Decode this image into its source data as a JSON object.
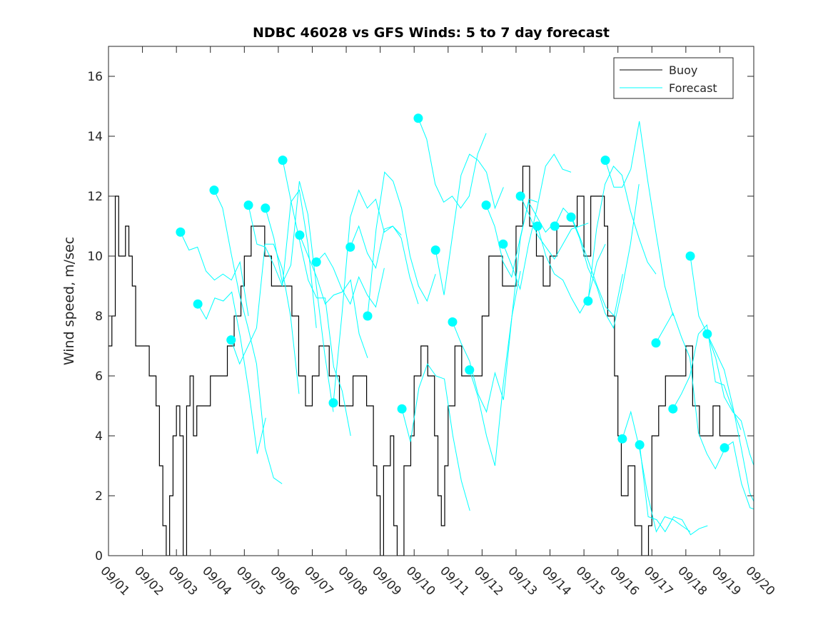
{
  "chart_data": {
    "type": "line",
    "title": "NDBC 46028 vs GFS Winds: 5 to 7 day forecast",
    "xlabel": "",
    "ylabel": "Wind speed, m/sec",
    "xlim": [
      0,
      19
    ],
    "ylim": [
      0,
      17
    ],
    "x_unit": "days since 09/01",
    "x_tick_labels": [
      "09/01",
      "09/02",
      "09/03",
      "09/04",
      "09/05",
      "09/06",
      "09/07",
      "09/08",
      "09/09",
      "09/10",
      "09/11",
      "09/12",
      "09/13",
      "09/14",
      "09/15",
      "09/16",
      "09/17",
      "09/18",
      "09/19",
      "09/20"
    ],
    "y_ticks": [
      0,
      2,
      4,
      6,
      8,
      10,
      12,
      14,
      16
    ],
    "grid": false,
    "legend": {
      "placement": "top-right",
      "entries": [
        "Buoy",
        "Forecast"
      ]
    },
    "colors": {
      "buoy": "#000000",
      "forecast": "#00ffff"
    },
    "buoy": {
      "x": [
        0,
        0.1,
        0.2,
        0.3,
        0.5,
        0.6,
        0.7,
        0.8,
        1.0,
        1.2,
        1.3,
        1.4,
        1.5,
        1.6,
        1.7,
        1.8,
        1.9,
        2.0,
        2.1,
        2.2,
        2.3,
        2.4,
        2.5,
        2.6,
        2.8,
        3.0,
        3.3,
        3.5,
        3.7,
        3.9,
        4.0,
        4.2,
        4.4,
        4.6,
        4.8,
        5.0,
        5.2,
        5.4,
        5.6,
        5.8,
        6.0,
        6.2,
        6.5,
        6.7,
        6.8,
        7.0,
        7.2,
        7.4,
        7.6,
        7.8,
        7.9,
        8.0,
        8.1,
        8.3,
        8.4,
        8.5,
        8.7,
        8.9,
        9.0,
        9.2,
        9.4,
        9.6,
        9.7,
        9.8,
        9.9,
        10.0,
        10.2,
        10.4,
        10.6,
        10.8,
        11.0,
        11.2,
        11.4,
        11.6,
        11.8,
        12.0,
        12.2,
        12.4,
        12.6,
        12.8,
        13.0,
        13.2,
        13.4,
        13.6,
        13.8,
        14.0,
        14.2,
        14.4,
        14.6,
        14.7,
        14.9,
        15.0,
        15.1,
        15.3,
        15.5,
        15.7,
        15.9,
        16.0,
        16.2,
        16.4,
        16.6,
        16.8,
        17.0,
        17.2,
        17.4,
        17.6,
        17.8,
        18.0,
        18.2,
        18.4
      ],
      "y": [
        7,
        8,
        12,
        10,
        11,
        10,
        9,
        7,
        7,
        6,
        6,
        5,
        3,
        1,
        0,
        2,
        4,
        5,
        4,
        0,
        5,
        6,
        4,
        5,
        5,
        6,
        6,
        7,
        8,
        9,
        10,
        11,
        11,
        10,
        9,
        9,
        9,
        8,
        6,
        5,
        6,
        7,
        6,
        6,
        5,
        5,
        6,
        6,
        5,
        3,
        2,
        0,
        3,
        4,
        1,
        0,
        3,
        4,
        6,
        7,
        6,
        4,
        2,
        1,
        3,
        5,
        7,
        6,
        6,
        6,
        8,
        10,
        10,
        9,
        9,
        11,
        13,
        11,
        10,
        9,
        10,
        11,
        11,
        11,
        12,
        10,
        12,
        12,
        11,
        8,
        6,
        4,
        2,
        3,
        1,
        0,
        1,
        4,
        5,
        6,
        6,
        6,
        7,
        5,
        4,
        4,
        5,
        4,
        4,
        4
      ]
    },
    "forecast_step_days": 0.25,
    "forecasts": [
      {
        "start": 2.12,
        "y": [
          10.8,
          10.2,
          10.3,
          9.5,
          9.2,
          9.4,
          9.2,
          9.8,
          8.0
        ]
      },
      {
        "start": 2.63,
        "y": [
          8.4,
          7.9,
          8.6,
          8.5,
          8.8,
          7.3,
          5.5,
          3.4,
          4.6
        ]
      },
      {
        "start": 3.11,
        "y": [
          12.2,
          11.6,
          10.1,
          8.7,
          7.6,
          6.4,
          3.6,
          2.6,
          2.4
        ]
      },
      {
        "start": 3.61,
        "y": [
          7.2,
          6.4,
          7.0,
          7.6,
          10.4,
          10.4,
          9.6,
          8.0,
          5.4
        ]
      },
      {
        "start": 4.12,
        "y": [
          11.7,
          10.4,
          10.3,
          9.7,
          9.0,
          11.8,
          12.2,
          10.4,
          7.6
        ]
      },
      {
        "start": 4.62,
        "y": [
          11.6,
          10.6,
          9.1,
          9.7,
          12.5,
          11.4,
          9.0,
          6.7,
          4.8
        ]
      },
      {
        "start": 5.13,
        "y": [
          13.2,
          11.8,
          10.5,
          9.2,
          8.6,
          8.6,
          6.3,
          5.5,
          4.0
        ]
      },
      {
        "start": 5.63,
        "y": [
          10.7,
          10.0,
          9.3,
          8.4,
          8.7,
          8.8,
          9.2,
          7.4,
          6.6
        ]
      },
      {
        "start": 6.12,
        "y": [
          9.8,
          10.1,
          9.6,
          8.9,
          8.4,
          9.3,
          8.7,
          8.3,
          9.6
        ]
      },
      {
        "start": 6.62,
        "y": [
          5.1,
          8.0,
          11.3,
          12.2,
          11.6,
          11.9,
          10.8,
          11.0,
          10.7
        ]
      },
      {
        "start": 7.12,
        "y": [
          10.3,
          11.0,
          10.1,
          9.6,
          10.9,
          11.0,
          10.6,
          9.3,
          8.4
        ]
      },
      {
        "start": 7.63,
        "y": [
          8.0,
          10.9,
          12.8,
          12.5,
          11.6,
          10.0,
          9.0,
          8.5,
          9.4
        ]
      },
      {
        "start": 8.64,
        "y": [
          4.9,
          3.8,
          5.6,
          6.4,
          6.0,
          5.9,
          4.0,
          2.5,
          1.5
        ]
      },
      {
        "start": 9.12,
        "y": [
          14.6,
          13.9,
          12.4,
          11.8,
          12.0,
          11.6,
          12.0,
          13.4,
          14.1
        ]
      },
      {
        "start": 9.63,
        "y": [
          10.2,
          8.7,
          10.7,
          12.7,
          13.4,
          13.2,
          12.8,
          11.6,
          12.3
        ]
      },
      {
        "start": 10.13,
        "y": [
          7.8,
          7.1,
          6.5,
          5.4,
          4.8,
          6.1,
          5.2,
          8.0,
          9.5
        ]
      },
      {
        "start": 10.63,
        "y": [
          6.2,
          5.3,
          4.0,
          3.0,
          5.8,
          8.0,
          10.6,
          11.9,
          11.8
        ]
      },
      {
        "start": 11.12,
        "y": [
          11.7,
          11.0,
          9.8,
          9.3,
          10.6,
          11.8,
          11.3,
          10.8,
          11.1
        ]
      },
      {
        "start": 11.62,
        "y": [
          10.4,
          9.7,
          8.9,
          10.4,
          11.6,
          13.0,
          13.4,
          12.9,
          12.8
        ]
      },
      {
        "start": 12.13,
        "y": [
          12.0,
          11.4,
          10.7,
          10.3,
          9.9,
          10.4,
          10.9,
          11.0,
          11.1
        ]
      },
      {
        "start": 12.63,
        "y": [
          11.0,
          10.0,
          9.4,
          9.2,
          8.6,
          8.1,
          8.6,
          9.8,
          10.4
        ]
      },
      {
        "start": 13.14,
        "y": [
          11.0,
          11.6,
          11.3,
          10.6,
          9.8,
          9.0,
          8.3,
          8.0,
          9.4
        ]
      },
      {
        "start": 13.62,
        "y": [
          11.3,
          10.6,
          9.6,
          9.0,
          8.1,
          7.6,
          8.9,
          10.4,
          12.4
        ]
      },
      {
        "start": 14.12,
        "y": [
          8.5,
          10.9,
          12.4,
          13.0,
          12.7,
          11.5,
          10.6,
          9.8,
          9.4
        ]
      },
      {
        "start": 14.63,
        "y": [
          13.2,
          12.3,
          12.3,
          12.9,
          14.5,
          12.5,
          10.7,
          9.0,
          8.0
        ]
      },
      {
        "start": 15.13,
        "y": [
          3.9,
          4.8,
          3.6,
          2.0,
          0.8,
          1.3,
          1.2,
          1.0,
          0.8
        ]
      },
      {
        "start": 15.64,
        "y": [
          3.7,
          1.3,
          1.2,
          0.8,
          1.3,
          1.2,
          0.7,
          0.9,
          1.0
        ]
      },
      {
        "start": 16.12,
        "y": [
          7.1,
          7.6,
          8.1,
          7.3,
          6.6,
          4.1,
          3.4,
          2.9,
          3.5
        ]
      },
      {
        "start": 16.62,
        "y": [
          4.9,
          5.4,
          6.0,
          7.4,
          7.7,
          5.8,
          5.7,
          4.9,
          4.2
        ]
      },
      {
        "start": 17.13,
        "y": [
          10.0,
          8.0,
          7.4,
          6.8,
          6.2,
          5.0,
          3.6,
          2.1,
          1.5
        ]
      },
      {
        "start": 17.63,
        "y": [
          7.4,
          6.6,
          5.3,
          4.8,
          4.5,
          3.4,
          2.6,
          2.0,
          2.3
        ]
      },
      {
        "start": 18.14,
        "y": [
          3.6,
          3.8,
          2.4,
          1.6,
          1.5,
          1.0,
          1.0,
          1.6,
          1.5
        ]
      }
    ]
  }
}
